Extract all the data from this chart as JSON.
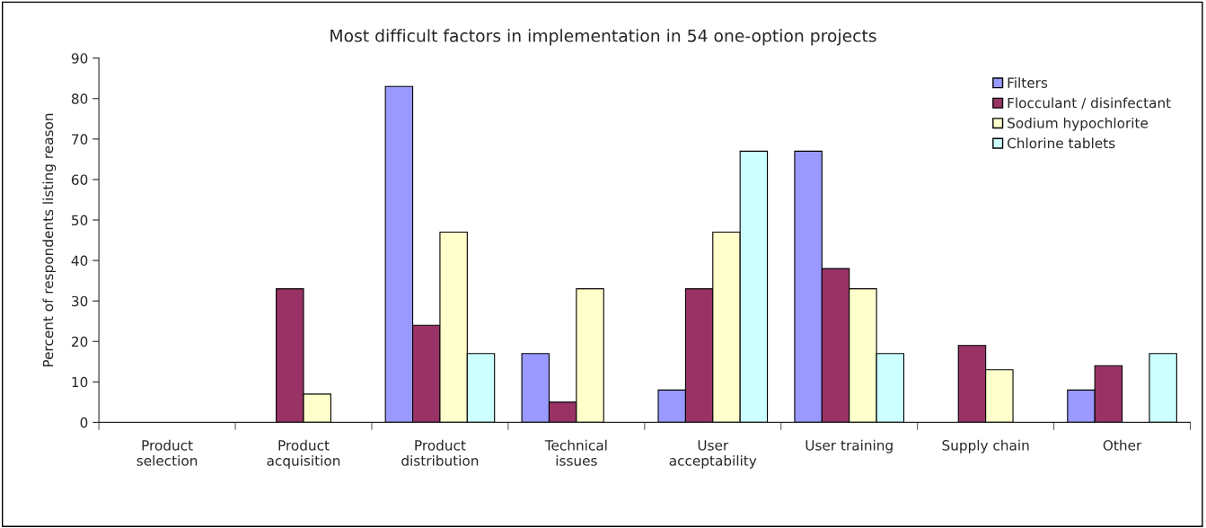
{
  "chart_data": {
    "type": "bar",
    "title": "Most difficult factors in implementation in 54 one-option projects",
    "ylabel": "Percent of respondents listing reason",
    "categories": [
      "Product\nselection",
      "Product\nacquisition",
      "Product\ndistribution",
      "Technical\nissues",
      "User\nacceptability",
      "User training",
      "Supply chain",
      "Other"
    ],
    "series": [
      {
        "name": "Filters",
        "color": "#9999ff",
        "values": [
          0,
          0,
          83,
          17,
          8,
          67,
          0,
          8
        ]
      },
      {
        "name": "Flocculant / disinfectant",
        "color": "#993366",
        "values": [
          0,
          33,
          24,
          5,
          33,
          38,
          19,
          14
        ]
      },
      {
        "name": "Sodium hypochlorite",
        "color": "#ffffcc",
        "values": [
          0,
          7,
          47,
          33,
          47,
          33,
          13,
          0
        ]
      },
      {
        "name": "Chlorine tablets",
        "color": "#ccffff",
        "values": [
          0,
          0,
          17,
          0,
          67,
          17,
          0,
          17
        ]
      }
    ],
    "ylim": [
      0,
      90
    ],
    "yticks": [
      0,
      10,
      20,
      30,
      40,
      50,
      60,
      70,
      80,
      90
    ],
    "grid": false,
    "legend": "top right"
  }
}
